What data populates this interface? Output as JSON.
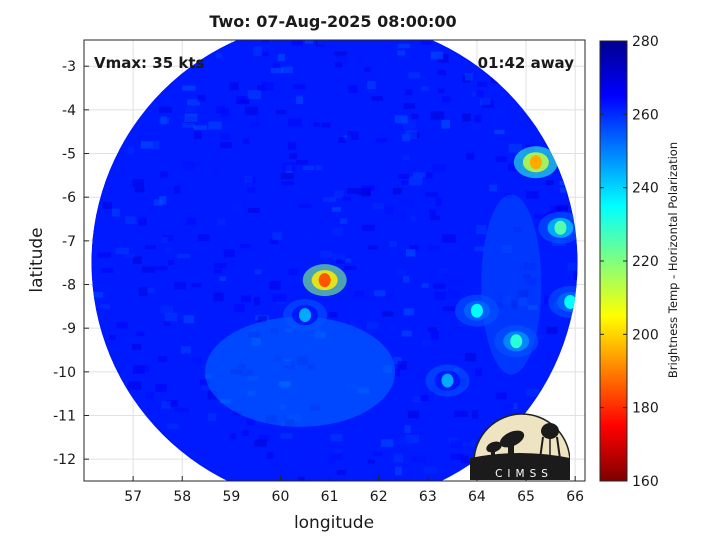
{
  "chart_data": {
    "type": "heatmap",
    "title": "Two: 07-Aug-2025 08:00:00",
    "xlabel": "longitude",
    "ylabel": "latitude",
    "xlim": [
      56.0,
      66.2
    ],
    "ylim": [
      -12.5,
      -2.4
    ],
    "x_ticks": [
      57,
      58,
      59,
      60,
      61,
      62,
      63,
      64,
      65,
      66
    ],
    "y_ticks": [
      -3,
      -4,
      -5,
      -6,
      -7,
      -8,
      -9,
      -10,
      -11,
      -12
    ],
    "grid": true,
    "annotations": {
      "vmax": "Vmax: 35 kts",
      "time_away": "01:42 away"
    },
    "colorbar": {
      "label": "Brightness Temp - Horizontal Polarization",
      "range": [
        160,
        280
      ],
      "ticks": [
        280,
        260,
        240,
        220,
        200,
        180,
        160
      ],
      "colormap": [
        "#7f0000",
        "#ff0000",
        "#ff8000",
        "#ffff00",
        "#80ff80",
        "#00ffff",
        "#0080ff",
        "#0000ff",
        "#00008f"
      ]
    },
    "swath": {
      "center_lon": 61.1,
      "center_lat": -7.5,
      "radius_deg": 4.95,
      "background_value": 262
    },
    "features": [
      {
        "name": "eyewall convection",
        "lon": 60.9,
        "lat": -7.9,
        "value": 185
      },
      {
        "name": "convective band west",
        "lon": 60.5,
        "lat": -8.7,
        "value": 245
      },
      {
        "name": "convection east 1",
        "lon": 65.2,
        "lat": -5.2,
        "value": 195
      },
      {
        "name": "convection east 2",
        "lon": 65.7,
        "lat": -6.7,
        "value": 225
      },
      {
        "name": "convection east 3",
        "lon": 64.0,
        "lat": -8.6,
        "value": 235
      },
      {
        "name": "convection east 4",
        "lon": 64.8,
        "lat": -9.3,
        "value": 230
      },
      {
        "name": "convection east 5",
        "lon": 65.9,
        "lat": -8.4,
        "value": 235
      },
      {
        "name": "convection east 6",
        "lon": 63.4,
        "lat": -10.2,
        "value": 245
      }
    ]
  },
  "logo": {
    "text": "CIMSS"
  }
}
